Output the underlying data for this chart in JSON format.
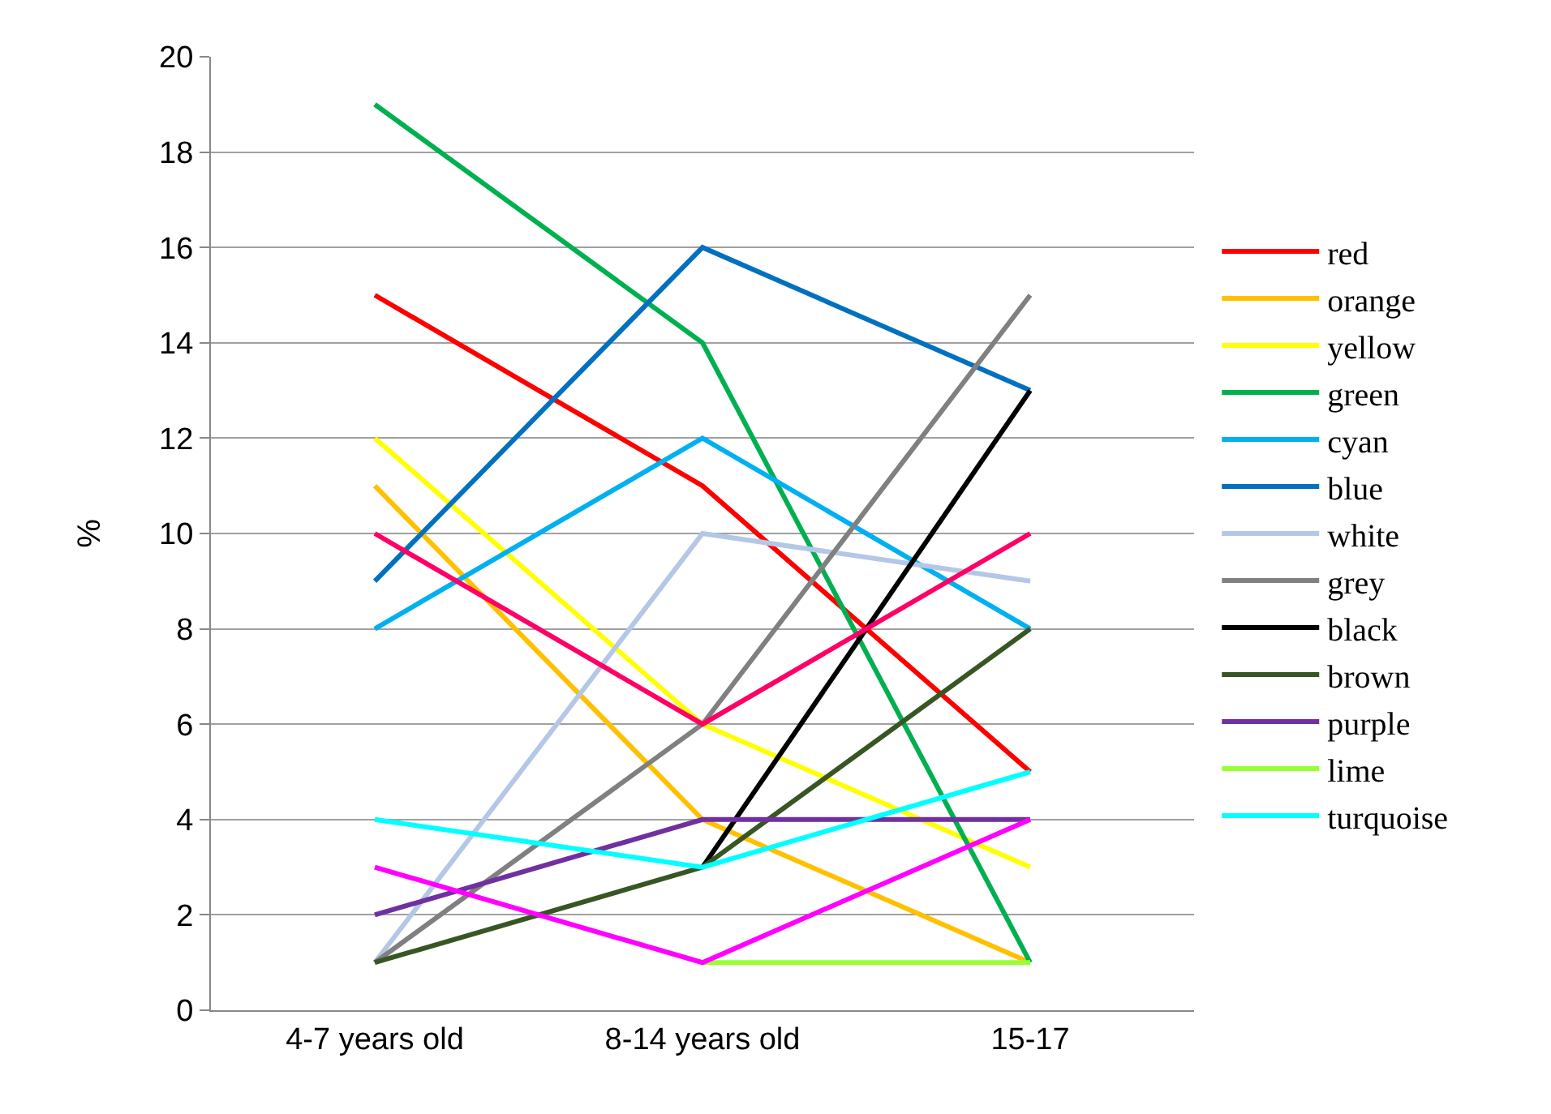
{
  "chart_data": {
    "type": "line",
    "ylabel": "%",
    "categories": [
      "4-7 years old",
      "8-14 years old",
      "15-17"
    ],
    "ylim": [
      0,
      20
    ],
    "yticks": [
      0,
      2,
      4,
      6,
      8,
      10,
      12,
      14,
      16,
      18,
      20
    ],
    "grid": "y",
    "legend": "right",
    "marker": "none",
    "line_style": "solid",
    "series": [
      {
        "name": "red",
        "color": "#ff0000",
        "values": [
          15,
          11,
          5
        ]
      },
      {
        "name": "orange",
        "color": "#ffc000",
        "values": [
          11,
          4,
          1
        ]
      },
      {
        "name": "yellow",
        "color": "#ffff00",
        "values": [
          12,
          6,
          3
        ]
      },
      {
        "name": "green",
        "color": "#00b050",
        "values": [
          19,
          14,
          1
        ]
      },
      {
        "name": "cyan",
        "color": "#00b0f0",
        "values": [
          8,
          12,
          8
        ]
      },
      {
        "name": "blue",
        "color": "#0070c0",
        "values": [
          9,
          16,
          13
        ]
      },
      {
        "name": "white",
        "color": "#b4c7e7",
        "values": [
          1,
          10,
          9
        ]
      },
      {
        "name": "grey",
        "color": "#808080",
        "values": [
          1,
          6,
          15
        ]
      },
      {
        "name": "black",
        "color": "#000000",
        "values": [
          null,
          3,
          13
        ]
      },
      {
        "name": "brown",
        "color": "#375623",
        "values": [
          1,
          3,
          8
        ]
      },
      {
        "name": "purple",
        "color": "#7030a0",
        "values": [
          2,
          4,
          4
        ]
      },
      {
        "name": "lime",
        "color": "#99ff33",
        "values": [
          null,
          1,
          1
        ]
      },
      {
        "name": "turquoise",
        "color": "#00ffff",
        "values": [
          4,
          3,
          5
        ]
      },
      {
        "color": "#ff0066",
        "values": [
          10,
          6,
          10
        ]
      },
      {
        "color": "#ff00ff",
        "values": [
          3,
          1,
          4
        ]
      }
    ]
  }
}
